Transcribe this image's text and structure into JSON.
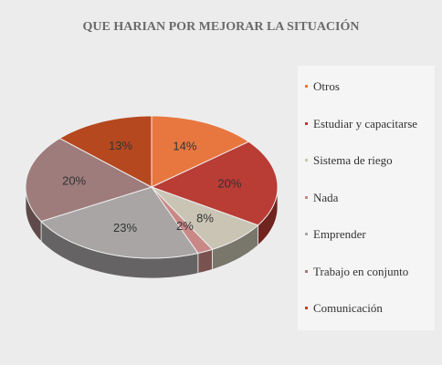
{
  "chart_data": {
    "type": "pie3d",
    "title": "QUE HARIAN POR MEJORAR LA SITUACIÓN",
    "categories": [
      "Otros",
      "Estudiar y capacitarse",
      "Sistema de riego",
      "Nada",
      "Emprender",
      "Trabajo en conjunto",
      "Comunicación"
    ],
    "values": [
      14,
      20,
      8,
      2,
      23,
      20,
      13
    ],
    "value_labels": [
      "14%",
      "20%",
      "8%",
      "2%",
      "23%",
      "20%",
      "13%"
    ],
    "colors": [
      "#e8773f",
      "#b93c35",
      "#c9c4b4",
      "#c98886",
      "#a9a5a5",
      "#9e7c7c",
      "#b5481f"
    ],
    "legend": "right"
  }
}
